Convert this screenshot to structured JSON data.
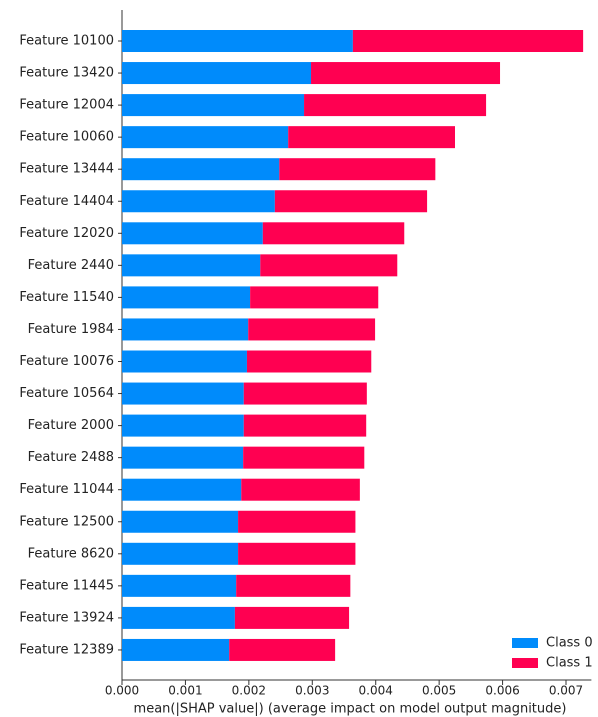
{
  "chart_data": {
    "type": "bar",
    "orientation": "horizontal",
    "stacked": true,
    "xlabel": "mean(|SHAP value|) (average impact on model output magnitude)",
    "categories": [
      "Feature 10100",
      "Feature 13420",
      "Feature 12004",
      "Feature 10060",
      "Feature 13444",
      "Feature 14404",
      "Feature 12020",
      "Feature 2440",
      "Feature 11540",
      "Feature 1984",
      "Feature 10076",
      "Feature 10564",
      "Feature 2000",
      "Feature 2488",
      "Feature 11044",
      "Feature 12500",
      "Feature 8620",
      "Feature 11445",
      "Feature 13924",
      "Feature 12389"
    ],
    "series": [
      {
        "name": "Class 0",
        "color": "#008bfb",
        "values": [
          0.00364,
          0.00298,
          0.00287,
          0.00262,
          0.00248,
          0.00241,
          0.00222,
          0.00218,
          0.00202,
          0.00199,
          0.00197,
          0.00192,
          0.00192,
          0.00191,
          0.00188,
          0.00183,
          0.00183,
          0.0018,
          0.00178,
          0.00169
        ]
      },
      {
        "name": "Class 1",
        "color": "#ff0051",
        "values": [
          0.00363,
          0.00298,
          0.00287,
          0.00263,
          0.00246,
          0.0024,
          0.00223,
          0.00216,
          0.00202,
          0.002,
          0.00196,
          0.00194,
          0.00193,
          0.00191,
          0.00187,
          0.00185,
          0.00185,
          0.0018,
          0.0018,
          0.00167
        ]
      }
    ],
    "xlim": [
      0,
      0.0074
    ],
    "xticks": [
      {
        "value": 0,
        "label": "0.000"
      },
      {
        "value": 0.001,
        "label": "0.001"
      },
      {
        "value": 0.002,
        "label": "0.002"
      },
      {
        "value": 0.003,
        "label": "0.003"
      },
      {
        "value": 0.004,
        "label": "0.004"
      },
      {
        "value": 0.005,
        "label": "0.005"
      },
      {
        "value": 0.006,
        "label": "0.006"
      },
      {
        "value": 0.007,
        "label": "0.007"
      }
    ],
    "legend": "lower right"
  }
}
